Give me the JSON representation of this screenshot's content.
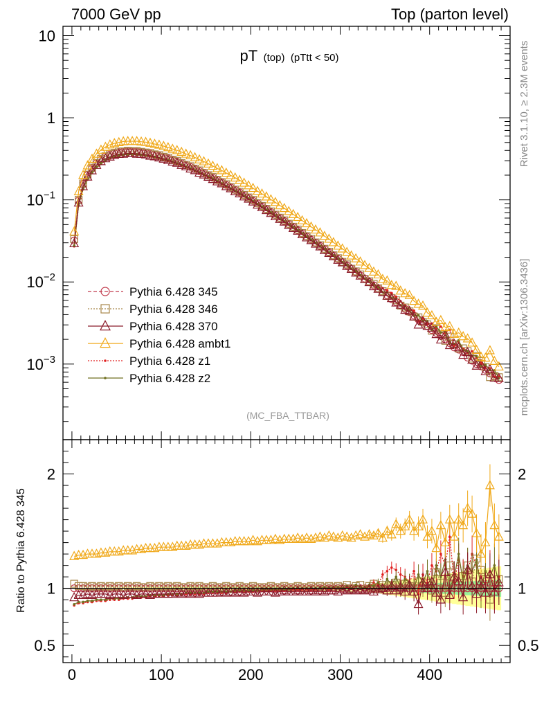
{
  "header": {
    "left": "7000 GeV pp",
    "right": "Top (parton level)"
  },
  "side_labels": {
    "rivet": "Rivet 3.1.10, ≥ 2.3M events",
    "mcplots": "mcplots.cern.ch [arXiv:1306.3436]"
  },
  "main_plot": {
    "title_main": "pT",
    "title_sub1": "(top)",
    "title_sub2": "(pTtt < 50)",
    "analysis_label": "(MC_FBA_TTBAR)",
    "yscale": "log",
    "ylim": [
      0.00012,
      13
    ],
    "ytick_labels": [
      {
        "value": 10,
        "base": "10",
        "exp": ""
      },
      {
        "value": 1,
        "base": "1",
        "exp": ""
      },
      {
        "value": 0.1,
        "base": "10",
        "exp": "−1"
      },
      {
        "value": 0.01,
        "base": "10",
        "exp": "−2"
      },
      {
        "value": 0.001,
        "base": "10",
        "exp": "−3"
      }
    ]
  },
  "ratio_plot": {
    "ylabel": "Ratio to Pythia 6.428 345",
    "ylim": [
      0.35,
      2.3
    ],
    "ytick_labels": [
      "2",
      "1",
      "0.5"
    ],
    "ytick_values": [
      2,
      1,
      0.5
    ]
  },
  "x_axis": {
    "xlim": [
      -10,
      490
    ],
    "tick_labels": [
      "0",
      "100",
      "200",
      "300",
      "400"
    ],
    "tick_values": [
      0,
      100,
      200,
      300,
      400
    ]
  },
  "legend": {
    "location": "middle-left",
    "entries": [
      {
        "label": "Pythia 6.428 345",
        "color": "#c0384a",
        "marker": "circle",
        "dash": "5,3"
      },
      {
        "label": "Pythia 6.428 346",
        "color": "#a8874a",
        "marker": "square",
        "dash": "2,2"
      },
      {
        "label": "Pythia 6.428 370",
        "color": "#8b1a2a",
        "marker": "triangle",
        "dash": ""
      },
      {
        "label": "Pythia 6.428 ambt1",
        "color": "#f0a818",
        "marker": "triangle",
        "dash": ""
      },
      {
        "label": "Pythia 6.428 z1",
        "color": "#e02020",
        "marker": "dot",
        "dash": "2,2"
      },
      {
        "label": "Pythia 6.428 z2",
        "color": "#707020",
        "marker": "dot",
        "dash": ""
      }
    ]
  },
  "chart_data": {
    "type": "line",
    "x": [
      2.5,
      7.5,
      12.5,
      17.5,
      22.5,
      27.5,
      32.5,
      37.5,
      42.5,
      47.5,
      52.5,
      57.5,
      62.5,
      67.5,
      72.5,
      77.5,
      82.5,
      87.5,
      92.5,
      97.5,
      102.5,
      107.5,
      112.5,
      117.5,
      122.5,
      127.5,
      132.5,
      137.5,
      142.5,
      147.5,
      152.5,
      157.5,
      162.5,
      167.5,
      172.5,
      177.5,
      182.5,
      187.5,
      192.5,
      197.5,
      202.5,
      207.5,
      212.5,
      217.5,
      222.5,
      227.5,
      232.5,
      237.5,
      242.5,
      247.5,
      252.5,
      257.5,
      262.5,
      267.5,
      272.5,
      277.5,
      282.5,
      287.5,
      292.5,
      297.5,
      302.5,
      307.5,
      312.5,
      317.5,
      322.5,
      327.5,
      332.5,
      337.5,
      342.5,
      347.5,
      352.5,
      357.5,
      362.5,
      367.5,
      372.5,
      377.5,
      382.5,
      387.5,
      392.5,
      397.5,
      402.5,
      407.5,
      412.5,
      417.5,
      422.5,
      427.5,
      432.5,
      437.5,
      442.5,
      447.5,
      452.5,
      457.5,
      462.5,
      467.5,
      472.5,
      477.5
    ],
    "ref_values": [
      0.032,
      0.098,
      0.155,
      0.201,
      0.242,
      0.279,
      0.31,
      0.336,
      0.356,
      0.37,
      0.38,
      0.386,
      0.389,
      0.389,
      0.386,
      0.381,
      0.374,
      0.365,
      0.355,
      0.344,
      0.332,
      0.32,
      0.306,
      0.293,
      0.279,
      0.265,
      0.252,
      0.238,
      0.224,
      0.211,
      0.198,
      0.186,
      0.174,
      0.163,
      0.152,
      0.142,
      0.132,
      0.123,
      0.114,
      0.106,
      0.0978,
      0.0905,
      0.0835,
      0.077,
      0.071,
      0.0654,
      0.0601,
      0.0552,
      0.0507,
      0.0466,
      0.0427,
      0.0391,
      0.0358,
      0.0328,
      0.03,
      0.0275,
      0.0251,
      0.0229,
      0.0209,
      0.0191,
      0.0174,
      0.0159,
      0.0145,
      0.0132,
      0.012,
      0.011,
      0.01,
      0.0091,
      0.0083,
      0.0075,
      0.0069,
      0.0062,
      0.0057,
      0.0052,
      0.0047,
      0.0043,
      0.0039,
      0.0035,
      0.0032,
      0.0029,
      0.0026,
      0.0024,
      0.0022,
      0.002,
      0.0018,
      0.0016,
      0.0015,
      0.0014,
      0.0012,
      0.0011,
      0.001,
      0.00094,
      0.00085,
      0.00077,
      0.0007,
      0.00064
    ],
    "series": [
      {
        "name": "Pythia 6.428 345",
        "ratio": [
          1.0,
          1.0,
          1.0,
          1.0,
          1.0,
          1.0,
          1.0,
          1.0,
          1.0,
          1.0,
          1.0,
          1.0,
          1.0,
          1.0,
          1.0,
          1.0,
          1.0,
          1.0,
          1.0,
          1.0,
          1.0,
          1.0,
          1.0,
          1.0,
          1.0,
          1.0,
          1.0,
          1.0,
          1.0,
          1.0,
          1.0,
          1.0,
          1.0,
          1.0,
          1.0,
          1.0,
          1.0,
          1.0,
          1.0,
          1.0,
          1.0,
          1.0,
          1.0,
          1.0,
          1.0,
          1.0,
          1.0,
          1.0,
          1.0,
          1.0,
          1.0,
          1.0,
          1.0,
          1.0,
          1.0,
          1.0,
          1.0,
          1.0,
          1.0,
          1.0,
          1.0,
          1.0,
          1.0,
          1.0,
          1.0,
          1.0,
          1.0,
          1.0,
          1.0,
          1.0,
          1.0,
          1.0,
          1.0,
          1.0,
          1.0,
          1.0,
          1.0,
          1.0,
          1.0,
          1.0,
          1.0,
          1.0,
          1.0,
          1.0,
          1.0,
          1.0,
          1.0,
          1.0,
          1.0,
          1.0,
          1.0,
          1.0,
          1.0,
          1.0,
          1.0,
          1.0
        ]
      },
      {
        "name": "Pythia 6.428 346",
        "ratio": [
          1.04,
          1.02,
          1.02,
          1.01,
          1.02,
          1.01,
          1.02,
          1.01,
          1.02,
          1.01,
          1.02,
          1.01,
          1.02,
          1.01,
          1.02,
          1.01,
          1.01,
          1.02,
          1.01,
          1.02,
          1.01,
          1.02,
          1.01,
          1.02,
          1.01,
          1.01,
          1.02,
          1.01,
          1.02,
          1.01,
          1.01,
          1.02,
          1.01,
          1.01,
          1.02,
          1.01,
          1.01,
          1.02,
          1.01,
          1.01,
          1.02,
          1.01,
          1.01,
          1.01,
          1.02,
          1.01,
          1.01,
          1.02,
          1.01,
          1.01,
          1.02,
          1.01,
          1.01,
          1.02,
          1.01,
          1.02,
          1.01,
          1.02,
          1.01,
          1.02,
          1.01,
          1.03,
          1.0,
          1.02,
          1.03,
          0.99,
          1.02,
          1.04,
          1.01,
          1.03,
          0.98,
          1.03,
          1.05,
          0.99,
          1.04,
          1.02,
          0.97,
          1.06,
          1.02,
          1.05,
          0.98,
          1.14,
          1.05,
          0.96,
          1.2,
          1.09,
          1.03,
          1.11,
          1.2,
          1.06,
          1.26,
          1.16,
          1.08,
          0.9,
          1.03,
          1.08
        ]
      },
      {
        "name": "Pythia 6.428 370",
        "ratio": [
          0.92,
          0.94,
          0.94,
          0.95,
          0.94,
          0.95,
          0.95,
          0.95,
          0.94,
          0.95,
          0.95,
          0.94,
          0.95,
          0.95,
          0.94,
          0.95,
          0.95,
          0.94,
          0.95,
          0.95,
          0.95,
          0.95,
          0.95,
          0.96,
          0.95,
          0.96,
          0.95,
          0.96,
          0.95,
          0.96,
          0.96,
          0.96,
          0.96,
          0.97,
          0.96,
          0.97,
          0.96,
          0.97,
          0.96,
          0.97,
          0.97,
          0.96,
          0.97,
          0.97,
          0.97,
          0.96,
          0.97,
          0.98,
          0.97,
          0.97,
          0.98,
          0.97,
          0.97,
          0.98,
          0.97,
          0.98,
          0.97,
          0.98,
          0.98,
          0.97,
          0.99,
          0.98,
          0.99,
          0.98,
          0.99,
          0.98,
          0.99,
          0.97,
          0.99,
          1.0,
          0.98,
          1.02,
          0.98,
          1.01,
          0.97,
          1.03,
          0.97,
          0.86,
          1.05,
          1.0,
          1.06,
          0.96,
          0.9,
          1.14,
          0.94,
          1.1,
          1.06,
          0.92,
          1.16,
          1.02,
          0.95,
          1.06,
          0.96,
          1.12,
          0.97,
          1.05
        ]
      },
      {
        "name": "Pythia 6.428 ambt1",
        "ratio": [
          1.28,
          1.29,
          1.29,
          1.3,
          1.3,
          1.3,
          1.31,
          1.31,
          1.32,
          1.32,
          1.32,
          1.33,
          1.33,
          1.33,
          1.34,
          1.34,
          1.35,
          1.35,
          1.35,
          1.36,
          1.36,
          1.36,
          1.36,
          1.37,
          1.37,
          1.37,
          1.38,
          1.38,
          1.38,
          1.39,
          1.39,
          1.39,
          1.39,
          1.4,
          1.4,
          1.4,
          1.41,
          1.41,
          1.41,
          1.41,
          1.42,
          1.41,
          1.42,
          1.42,
          1.42,
          1.43,
          1.42,
          1.43,
          1.43,
          1.43,
          1.44,
          1.43,
          1.44,
          1.43,
          1.44,
          1.45,
          1.44,
          1.46,
          1.45,
          1.44,
          1.46,
          1.45,
          1.44,
          1.46,
          1.47,
          1.45,
          1.47,
          1.46,
          1.48,
          1.44,
          1.5,
          1.47,
          1.56,
          1.5,
          1.54,
          1.6,
          1.5,
          1.54,
          1.6,
          1.45,
          1.5,
          1.35,
          1.55,
          1.4,
          1.6,
          1.45,
          1.6,
          1.55,
          1.7,
          1.65,
          1.48,
          1.3,
          1.4,
          1.9,
          1.55,
          1.45
        ]
      },
      {
        "name": "Pythia 6.428 z1",
        "ratio": [
          0.85,
          0.87,
          0.87,
          0.88,
          0.88,
          0.89,
          0.89,
          0.89,
          0.9,
          0.9,
          0.9,
          0.91,
          0.91,
          0.91,
          0.92,
          0.92,
          0.92,
          0.93,
          0.93,
          0.93,
          0.93,
          0.94,
          0.94,
          0.94,
          0.94,
          0.95,
          0.95,
          0.95,
          0.95,
          0.95,
          0.96,
          0.96,
          0.96,
          0.96,
          0.96,
          0.97,
          0.97,
          0.97,
          0.97,
          0.97,
          0.97,
          0.98,
          0.98,
          0.98,
          0.98,
          0.98,
          0.98,
          0.98,
          0.99,
          0.99,
          0.99,
          0.99,
          0.99,
          0.99,
          0.99,
          1.0,
          1.0,
          0.99,
          1.0,
          1.01,
          1.0,
          1.01,
          1.0,
          1.02,
          1.01,
          1.0,
          1.02,
          1.05,
          1.03,
          1.12,
          1.15,
          1.18,
          1.16,
          1.12,
          1.1,
          1.05,
          1.15,
          0.95,
          1.12,
          1.05,
          1.2,
          1.15,
          1.3,
          1.2,
          1.45,
          1.05,
          1.25,
          1.1,
          1.15,
          1.3,
          1.2,
          1.1,
          1.05,
          1.15,
          1.0,
          1.1
        ]
      },
      {
        "name": "Pythia 6.428 z2",
        "ratio": [
          0.86,
          0.88,
          0.88,
          0.89,
          0.89,
          0.9,
          0.9,
          0.9,
          0.91,
          0.91,
          0.91,
          0.92,
          0.92,
          0.92,
          0.93,
          0.93,
          0.93,
          0.94,
          0.94,
          0.94,
          0.94,
          0.95,
          0.95,
          0.95,
          0.95,
          0.96,
          0.96,
          0.96,
          0.96,
          0.96,
          0.97,
          0.97,
          0.97,
          0.97,
          0.97,
          0.97,
          0.98,
          0.98,
          0.98,
          0.98,
          0.98,
          0.98,
          0.99,
          0.99,
          0.99,
          0.99,
          0.99,
          0.99,
          0.99,
          1.0,
          1.0,
          1.0,
          1.0,
          1.0,
          1.0,
          1.0,
          1.01,
          1.0,
          1.01,
          1.01,
          1.0,
          1.02,
          1.0,
          1.03,
          1.01,
          1.0,
          1.03,
          1.02,
          1.05,
          1.0,
          1.08,
          1.03,
          1.1,
          1.0,
          1.08,
          1.05,
          1.0,
          1.12,
          1.05,
          1.15,
          1.0,
          1.2,
          1.1,
          1.25,
          1.0,
          1.1,
          1.3,
          1.05,
          1.2,
          1.15,
          1.25,
          1.0,
          1.15,
          1.1,
          1.2,
          1.05
        ]
      }
    ]
  }
}
